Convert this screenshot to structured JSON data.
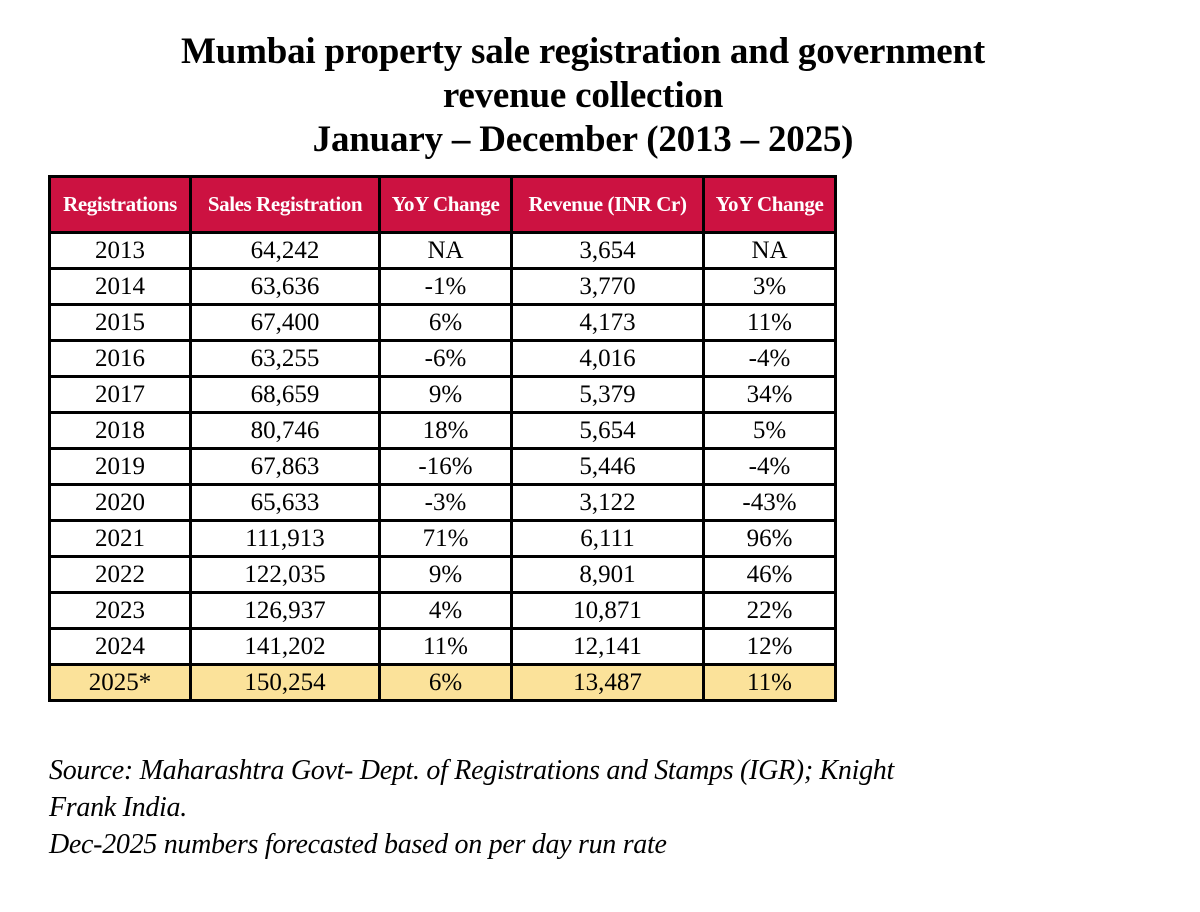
{
  "title": {
    "line1": "Mumbai property sale registration and government",
    "line2": "revenue collection",
    "line3": "January – December (2013 – 2025)"
  },
  "colors": {
    "header_bg": "#cc1241",
    "header_text": "#ffffff",
    "forecast_row_bg": "#fbe29a",
    "border": "#000000"
  },
  "table": {
    "headers": [
      "Registrations",
      "Sales Registration",
      "YoY Change",
      "Revenue (INR Cr)",
      "YoY Change"
    ],
    "rows": [
      [
        "2013",
        "64,242",
        "NA",
        "3,654",
        "NA"
      ],
      [
        "2014",
        "63,636",
        "-1%",
        "3,770",
        "3%"
      ],
      [
        "2015",
        "67,400",
        "6%",
        "4,173",
        "11%"
      ],
      [
        "2016",
        "63,255",
        "-6%",
        "4,016",
        "-4%"
      ],
      [
        "2017",
        "68,659",
        "9%",
        "5,379",
        "34%"
      ],
      [
        "2018",
        "80,746",
        "18%",
        "5,654",
        "5%"
      ],
      [
        "2019",
        "67,863",
        "-16%",
        "5,446",
        "-4%"
      ],
      [
        "2020",
        "65,633",
        "-3%",
        "3,122",
        "-43%"
      ],
      [
        "2021",
        "111,913",
        "71%",
        "6,111",
        "96%"
      ],
      [
        "2022",
        "122,035",
        "9%",
        "8,901",
        "46%"
      ],
      [
        "2023",
        "126,937",
        "4%",
        "10,871",
        "22%"
      ],
      [
        "2024",
        "141,202",
        "11%",
        "12,141",
        "12%"
      ],
      [
        "2025*",
        "150,254",
        "6%",
        "13,487",
        "11%"
      ]
    ],
    "highlighted_row_label": "2025*"
  },
  "source": {
    "line1": "Source: Maharashtra Govt- Dept. of Registrations and Stamps (IGR); Knight",
    "line2": "Frank India.",
    "line3": "Dec-2025 numbers forecasted based on per day run rate"
  }
}
